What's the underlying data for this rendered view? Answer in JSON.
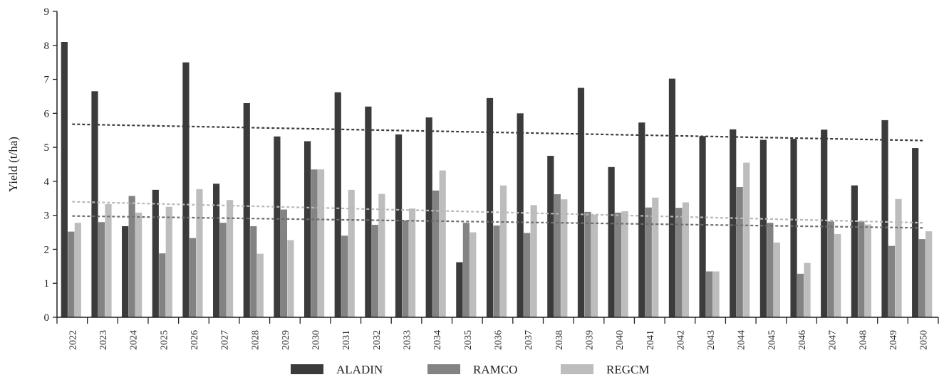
{
  "chart_data": {
    "type": "bar",
    "xlabel": "",
    "ylabel": "Yield (t/ha)",
    "ylim": [
      0,
      9
    ],
    "yticks": [
      0,
      1,
      2,
      3,
      4,
      5,
      6,
      7,
      8,
      9
    ],
    "grid": false,
    "legend_position": "bottom-center",
    "categories": [
      "2022",
      "2023",
      "2024",
      "2025",
      "2026",
      "2027",
      "2028",
      "2029",
      "2030",
      "2031",
      "2032",
      "2033",
      "2034",
      "2035",
      "2036",
      "2037",
      "2038",
      "2039",
      "2040",
      "2041",
      "2042",
      "2043",
      "2044",
      "2045",
      "2046",
      "2047",
      "2048",
      "2049",
      "2050"
    ],
    "series": [
      {
        "name": "ALADIN",
        "color": "#3b3b3b",
        "values": [
          8.1,
          6.65,
          2.68,
          3.75,
          7.5,
          3.93,
          6.3,
          5.32,
          5.18,
          6.62,
          6.2,
          5.38,
          5.88,
          1.62,
          6.45,
          6.0,
          4.75,
          6.75,
          4.42,
          5.73,
          7.02,
          5.33,
          5.53,
          5.22,
          5.25,
          5.52,
          3.88,
          5.8,
          4.98
        ]
      },
      {
        "name": "RAMCO",
        "color": "#838383",
        "values": [
          2.52,
          2.8,
          3.57,
          1.88,
          2.33,
          2.78,
          2.68,
          3.17,
          4.35,
          2.4,
          2.72,
          2.85,
          3.73,
          2.78,
          2.7,
          2.48,
          3.62,
          3.1,
          3.08,
          3.23,
          3.22,
          1.35,
          3.83,
          2.78,
          1.28,
          2.82,
          2.82,
          2.1,
          2.3
        ]
      },
      {
        "name": "REGCM",
        "color": "#bdbdbf",
        "values": [
          2.78,
          3.33,
          3.08,
          3.25,
          3.77,
          3.45,
          1.87,
          2.27,
          4.35,
          3.75,
          3.63,
          3.2,
          4.32,
          2.5,
          3.88,
          3.3,
          3.47,
          3.02,
          3.12,
          3.52,
          3.38,
          1.35,
          4.55,
          2.2,
          1.6,
          2.45,
          2.73,
          3.48,
          2.53
        ]
      }
    ],
    "trendlines": [
      {
        "series": "ALADIN",
        "start": 5.68,
        "end": 5.2,
        "color": "#3b3b3b"
      },
      {
        "series": "RAMCO",
        "start": 2.98,
        "end": 2.63,
        "color": "#6e6e6e"
      },
      {
        "series": "REGCM",
        "start": 3.4,
        "end": 2.78,
        "color": "#b8b8b8"
      }
    ]
  }
}
